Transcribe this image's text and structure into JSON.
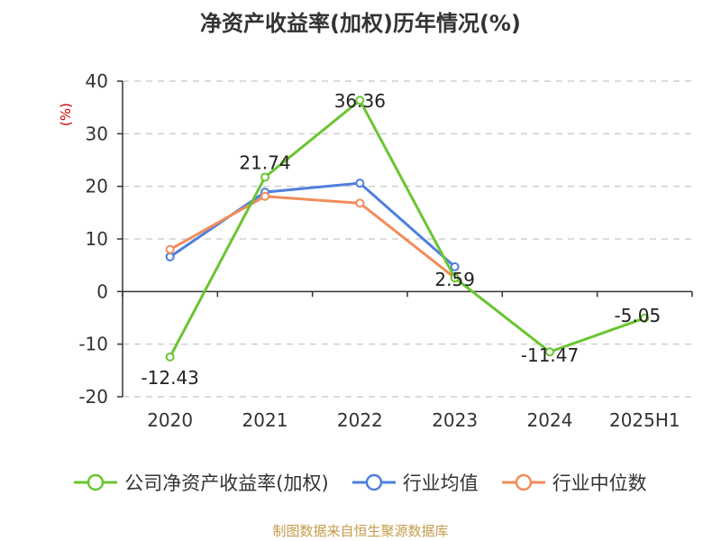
{
  "chart_data": {
    "type": "line",
    "title": "净资产收益率(加权)历年情况(%)",
    "ylabel": "(%)",
    "xlabel": "",
    "categories": [
      "2020",
      "2021",
      "2022",
      "2023",
      "2024",
      "2025H1"
    ],
    "ylim": [
      -20,
      40
    ],
    "yticks": [
      40,
      30,
      20,
      10,
      0,
      -10,
      -20
    ],
    "grid": true,
    "legend_position": "bottom",
    "series": [
      {
        "name": "公司净资产收益率(加权)",
        "color": "#6ac531",
        "values": [
          -12.43,
          21.74,
          36.36,
          2.59,
          -11.47,
          -5.05
        ],
        "data_labels": [
          "-12.43",
          "21.74",
          "36.36",
          "2.59",
          "-11.47",
          "-5.05"
        ]
      },
      {
        "name": "行业均值",
        "color": "#4f7fdc",
        "values": [
          6.6,
          18.9,
          20.6,
          4.7,
          null,
          null
        ]
      },
      {
        "name": "行业中位数",
        "color": "#f28c5a",
        "values": [
          8.0,
          18.1,
          16.8,
          2.6,
          null,
          null
        ]
      }
    ],
    "ylabel_color": "#cc0000"
  },
  "source_text": "制图数据来自恒生聚源数据库",
  "source_color": "#c59a4a"
}
